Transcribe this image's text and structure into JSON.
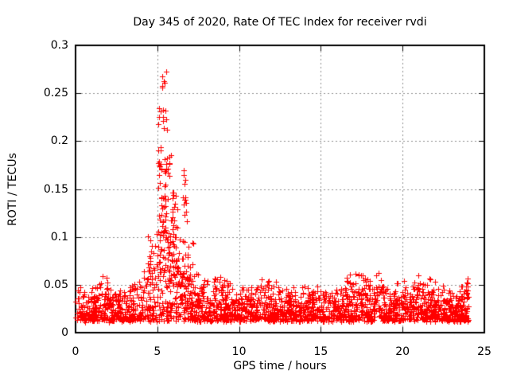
{
  "chart_data": {
    "type": "scatter",
    "title": "Day 345 of 2020, Rate Of TEC Index for receiver rvdi",
    "xlabel": "GPS time / hours",
    "ylabel": "ROTI / TECUs",
    "xlim": [
      0,
      25
    ],
    "ylim": [
      0,
      0.3
    ],
    "xticks": [
      {
        "v": 0,
        "label": "0"
      },
      {
        "v": 5,
        "label": "5"
      },
      {
        "v": 10,
        "label": "10"
      },
      {
        "v": 15,
        "label": "15"
      },
      {
        "v": 20,
        "label": "20"
      },
      {
        "v": 25,
        "label": "25"
      }
    ],
    "yticks": [
      {
        "v": 0,
        "label": "0"
      },
      {
        "v": 0.05,
        "label": "0.05"
      },
      {
        "v": 0.1,
        "label": "0.1"
      },
      {
        "v": 0.15,
        "label": "0.15"
      },
      {
        "v": 0.2,
        "label": "0.2"
      },
      {
        "v": 0.25,
        "label": "0.25"
      },
      {
        "v": 0.3,
        "label": "0.3"
      }
    ],
    "grid": {
      "on": true,
      "color": "#8f8f8f",
      "dash": [
        2,
        3
      ]
    },
    "legend": "none",
    "axis_color": "#000000",
    "background": "#ffffff",
    "marker": {
      "shape": "plus",
      "color": "#ff0000",
      "size": 7
    },
    "seed": 20201210,
    "baseline": {
      "points": 2350,
      "x_start": 0,
      "x_end": 24.05,
      "y_min": 0.013,
      "power": 1.7,
      "jitter": 0.004,
      "envelope": [
        [
          0.0,
          0.052
        ],
        [
          0.6,
          0.04
        ],
        [
          1.0,
          0.045
        ],
        [
          1.6,
          0.058
        ],
        [
          2.1,
          0.04
        ],
        [
          3.2,
          0.042
        ],
        [
          4.0,
          0.055
        ],
        [
          4.6,
          0.075
        ],
        [
          5.0,
          0.098
        ],
        [
          5.6,
          0.105
        ],
        [
          6.3,
          0.088
        ],
        [
          7.2,
          0.058
        ],
        [
          8.0,
          0.05
        ],
        [
          9.0,
          0.056
        ],
        [
          9.7,
          0.044
        ],
        [
          11.0,
          0.046
        ],
        [
          12.2,
          0.052
        ],
        [
          13.0,
          0.042
        ],
        [
          14.5,
          0.045
        ],
        [
          16.0,
          0.045
        ],
        [
          16.6,
          0.055
        ],
        [
          17.6,
          0.06
        ],
        [
          18.4,
          0.058
        ],
        [
          19.2,
          0.044
        ],
        [
          20.6,
          0.052
        ],
        [
          21.4,
          0.05
        ],
        [
          22.4,
          0.046
        ],
        [
          23.3,
          0.038
        ],
        [
          23.8,
          0.054
        ],
        [
          24.05,
          0.052
        ]
      ]
    },
    "spikes": [
      {
        "x0": 5.05,
        "x1": 5.3,
        "n": 20,
        "y0": 0.105,
        "y1": 0.262
      },
      {
        "x0": 5.28,
        "x1": 5.55,
        "n": 26,
        "y0": 0.11,
        "y1": 0.277
      },
      {
        "x0": 5.5,
        "x1": 5.85,
        "n": 18,
        "y0": 0.075,
        "y1": 0.212
      },
      {
        "x0": 5.9,
        "x1": 6.15,
        "n": 10,
        "y0": 0.1,
        "y1": 0.155
      },
      {
        "x0": 4.95,
        "x1": 6.3,
        "n": 50,
        "y0": 0.045,
        "y1": 0.135
      },
      {
        "x0": 6.55,
        "x1": 6.8,
        "n": 13,
        "y0": 0.113,
        "y1": 0.172
      },
      {
        "x0": 6.3,
        "x1": 7.3,
        "n": 22,
        "y0": 0.045,
        "y1": 0.098
      },
      {
        "x0": 4.4,
        "x1": 4.75,
        "n": 5,
        "y0": 0.078,
        "y1": 0.102
      },
      {
        "x0": 23.85,
        "x1": 24.0,
        "n": 9,
        "y0": 0.04,
        "y1": 0.0535
      }
    ],
    "peak_value": 0.277,
    "peak_hour": 5.4
  }
}
